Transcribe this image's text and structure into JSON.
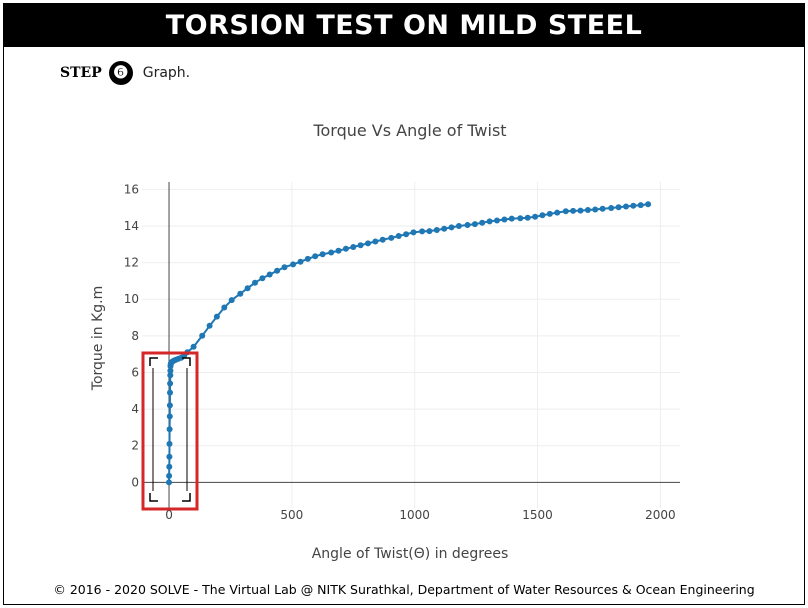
{
  "page": {
    "title": "TORSION TEST ON MILD STEEL",
    "step_label": "STEP",
    "step_number": "❻",
    "step_text": "Graph.",
    "footer": "© 2016 - 2020 SOLVE - The Virtual Lab @ NITK Surathkal, Department of Water Resources & Ocean Engineering"
  },
  "colors": {
    "series": "#1f77b4",
    "highlight_box": "#d62728",
    "grid": "#eeeeee",
    "zero_line": "#444444"
  },
  "chart_data": {
    "type": "scatter",
    "mode": "lines+markers",
    "title": "Torque Vs Angle of Twist",
    "xlabel": "Angle of Twist(Θ) in degrees",
    "ylabel": "Torque in Kg.m",
    "xlim": [
      -110,
      2080
    ],
    "ylim": [
      -1.4,
      16.4
    ],
    "xticks": [
      0,
      500,
      1000,
      1500,
      2000
    ],
    "yticks": [
      0,
      2,
      4,
      6,
      8,
      10,
      12,
      14,
      16
    ],
    "grid": true,
    "legend": "none",
    "annotation": "selection box around the initial elastic region (x ≈ 0–70, y ≈ 0–6.8)",
    "series": [
      {
        "x": [
          0,
          0.5,
          1,
          1.5,
          2,
          2.5,
          3,
          3.5,
          4,
          4.5,
          5,
          5.5,
          6,
          7,
          8,
          10,
          14,
          20,
          28,
          38,
          50,
          62,
          75,
          100,
          135,
          165,
          195,
          225,
          255,
          290,
          320,
          350,
          380,
          410,
          440,
          470,
          505,
          535,
          565,
          595,
          625,
          660,
          690,
          720,
          750,
          780,
          810,
          840,
          870,
          905,
          935,
          965,
          995,
          1030,
          1060,
          1090,
          1120,
          1150,
          1180,
          1215,
          1245,
          1275,
          1305,
          1335,
          1365,
          1395,
          1430,
          1460,
          1490,
          1520,
          1550,
          1580,
          1615,
          1645,
          1675,
          1705,
          1735,
          1765,
          1800,
          1830,
          1860,
          1890,
          1920,
          1950
        ],
        "y": [
          0,
          0.35,
          0.85,
          1.4,
          2.1,
          2.9,
          3.6,
          4.2,
          4.9,
          5.4,
          5.85,
          6.1,
          6.35,
          6.45,
          6.5,
          6.55,
          6.6,
          6.65,
          6.7,
          6.75,
          6.8,
          6.95,
          7.1,
          7.4,
          8.0,
          8.55,
          9.05,
          9.55,
          9.95,
          10.3,
          10.6,
          10.9,
          11.15,
          11.35,
          11.55,
          11.75,
          11.9,
          12.05,
          12.2,
          12.35,
          12.45,
          12.55,
          12.65,
          12.75,
          12.85,
          12.95,
          13.05,
          13.15,
          13.25,
          13.35,
          13.45,
          13.55,
          13.65,
          13.7,
          13.72,
          13.78,
          13.85,
          13.92,
          14.0,
          14.05,
          14.1,
          14.18,
          14.25,
          14.3,
          14.35,
          14.4,
          14.42,
          14.45,
          14.5,
          14.58,
          14.66,
          14.73,
          14.8,
          14.82,
          14.84,
          14.87,
          14.9,
          14.94,
          14.98,
          15.02,
          15.06,
          15.1,
          15.14,
          15.18
        ]
      }
    ]
  }
}
